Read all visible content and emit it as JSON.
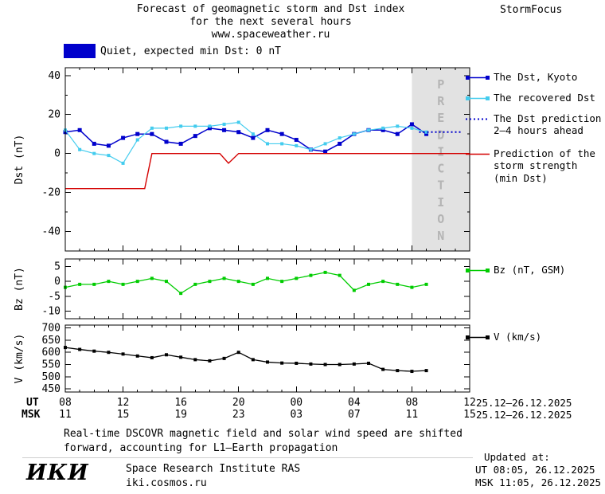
{
  "header": {
    "title_line1": "Forecast of geomagnetic storm and Dst index",
    "title_line2": "for the next several hours",
    "title_line3": "www.spaceweather.ru",
    "brand": "StormFocus"
  },
  "status_banner": {
    "box_color": "#0000cc",
    "label": "Quiet, expected min Dst: 0 nT"
  },
  "legend": {
    "items": [
      {
        "label": "The Dst, Kyoto",
        "marker": "square-line",
        "color": "#0000cc"
      },
      {
        "label": "The recovered Dst",
        "marker": "square-line",
        "color": "#44ccee"
      },
      {
        "label": "The Dst prediction",
        "label2": "2–4 hours ahead",
        "marker": "dotted-line",
        "color": "#0000cc"
      },
      {
        "label": "Prediction of the",
        "label2": "storm strength",
        "label3": "(min Dst)",
        "marker": "line",
        "color": "#d40000"
      },
      {
        "label": "Bz (nT, GSM)",
        "marker": "square-line",
        "color": "#00cc00"
      },
      {
        "label": "V (km/s)",
        "marker": "square-line",
        "color": "#000000"
      }
    ]
  },
  "chart_data": [
    {
      "type": "line",
      "title": "Forecast of geomagnetic storm and Dst index for the next several hours",
      "ylabel": "Dst (nT)",
      "xlabel": "UT hours, 25.12–26.12.2025",
      "xlim": [
        8,
        36
      ],
      "ylim": [
        -50,
        44
      ],
      "yticks": [
        40,
        20,
        0,
        -20,
        -40
      ],
      "yminor": 10,
      "grid": false,
      "prediction_band": {
        "start": 32,
        "end": 36,
        "label": "PREDICTION"
      },
      "series": [
        {
          "name": "The Dst, Kyoto",
          "color": "#0000cc",
          "marker": true,
          "marker_size": 5,
          "width": 1.5,
          "x": [
            8,
            9,
            10,
            11,
            12,
            13,
            14,
            15,
            16,
            17,
            18,
            19,
            20,
            21,
            22,
            23,
            24,
            25,
            26,
            27,
            28,
            29,
            30,
            31,
            32,
            33
          ],
          "y": [
            11,
            12,
            5,
            4,
            8,
            10,
            10,
            6,
            5,
            9,
            13,
            12,
            11,
            8,
            12,
            10,
            7,
            2,
            1,
            5,
            10,
            12,
            12,
            10,
            15,
            10
          ]
        },
        {
          "name": "The recovered Dst",
          "color": "#44ccee",
          "marker": true,
          "marker_size": 4,
          "width": 1.2,
          "x": [
            8,
            9,
            10,
            11,
            12,
            13,
            14,
            15,
            16,
            17,
            18,
            19,
            20,
            21,
            22,
            23,
            24,
            25,
            26,
            27,
            28,
            29,
            30,
            31,
            32,
            33
          ],
          "y": [
            12,
            2,
            0,
            -1,
            -5,
            7,
            13,
            13,
            14,
            14,
            14,
            15,
            16,
            10,
            5,
            5,
            4,
            2,
            5,
            8,
            10,
            12,
            13,
            14,
            13,
            11
          ]
        },
        {
          "name": "The Dst prediction 2–4 hours ahead",
          "color": "#0000cc",
          "style": "dotted",
          "x": [
            32.5,
            33,
            33.5,
            34,
            34.5,
            35,
            35.5
          ],
          "y": [
            11,
            11,
            11,
            11,
            11,
            11,
            11
          ]
        },
        {
          "name": "Prediction of the storm strength (min Dst)",
          "color": "#d40000",
          "width": 1.4,
          "x": [
            8,
            13.5,
            14,
            18.7,
            19.3,
            20,
            36
          ],
          "y": [
            -18,
            -18,
            0,
            0,
            -5,
            0,
            0
          ]
        }
      ]
    },
    {
      "type": "line",
      "ylabel": "Bz (nT)",
      "xlim": [
        8,
        36
      ],
      "ylim": [
        -12.5,
        7.5
      ],
      "yticks": [
        5,
        0,
        -5,
        -10
      ],
      "grid": false,
      "series": [
        {
          "name": "Bz (nT, GSM)",
          "color": "#00cc00",
          "marker": true,
          "marker_size": 4,
          "width": 1.3,
          "x": [
            8,
            9,
            10,
            11,
            12,
            13,
            14,
            15,
            16,
            17,
            18,
            19,
            20,
            21,
            22,
            23,
            24,
            25,
            26,
            27,
            28,
            29,
            30,
            31,
            32,
            33
          ],
          "y": [
            -2,
            -1,
            -1,
            0,
            -1,
            0,
            1,
            0,
            -4,
            -1,
            0,
            1,
            0,
            -1,
            1,
            0,
            1,
            2,
            3,
            2,
            -3,
            -1,
            0,
            -1,
            -2,
            -1
          ]
        }
      ]
    },
    {
      "type": "line",
      "ylabel": "V (km/s)",
      "xlim": [
        8,
        36
      ],
      "ylim": [
        437,
        712
      ],
      "yticks": [
        700,
        650,
        600,
        550,
        500,
        450
      ],
      "grid": false,
      "series": [
        {
          "name": "V (km/s)",
          "color": "#000000",
          "marker": true,
          "marker_size": 4,
          "width": 1.3,
          "x": [
            8,
            9,
            10,
            11,
            12,
            13,
            14,
            15,
            16,
            17,
            18,
            19,
            20,
            21,
            22,
            23,
            24,
            25,
            26,
            27,
            28,
            29,
            30,
            31,
            32,
            33
          ],
          "y": [
            620,
            612,
            605,
            600,
            593,
            585,
            578,
            590,
            580,
            570,
            565,
            575,
            600,
            570,
            560,
            556,
            555,
            552,
            550,
            550,
            552,
            555,
            530,
            525,
            522,
            525
          ]
        }
      ]
    }
  ],
  "xaxis": {
    "ut_label": "UT",
    "msk_label": "MSK",
    "ut_ticks": [
      "08",
      "12",
      "16",
      "20",
      "00",
      "04",
      "08",
      "12"
    ],
    "msk_ticks": [
      "11",
      "15",
      "19",
      "23",
      "03",
      "07",
      "11",
      "15"
    ],
    "ut_date": "25.12–26.12.2025",
    "msk_date": "25.12–26.12.2025"
  },
  "footer": {
    "note_line1": "Real-time DSCOVR magnetic field and solar wind speed are shifted",
    "note_line2": "forward, accounting for L1–Earth propagation",
    "logo": "ИКИ",
    "institute": "Space Research Institute RAS",
    "site": "iki.cosmos.ru",
    "updated_label": "Updated at:",
    "updated_ut": "UT  08:05, 26.12.2025",
    "updated_msk": "MSK 11:05, 26.12.2025"
  }
}
